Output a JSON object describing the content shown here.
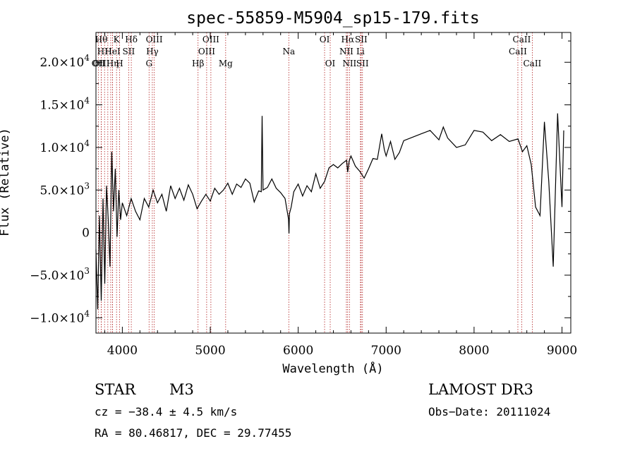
{
  "chart_data": {
    "type": "line",
    "title": "spec-55859-M5904_sp15-179.fits",
    "xlabel": "Wavelength (Å)",
    "ylabel": "Flux (Relative)",
    "xlim": [
      3700,
      9100
    ],
    "ylim": [
      -11800,
      23500
    ],
    "x_ticks": [
      4000,
      5000,
      6000,
      7000,
      8000,
      9000
    ],
    "y_ticks": [
      {
        "value": -10000,
        "mant": "−1.0×10",
        "exp": "4"
      },
      {
        "value": -5000,
        "mant": "−5.0×10",
        "exp": "3"
      },
      {
        "value": 0,
        "mant": "0",
        "exp": ""
      },
      {
        "value": 5000,
        "mant": "5.0×10",
        "exp": "3"
      },
      {
        "value": 10000,
        "mant": "1.0×10",
        "exp": "4"
      },
      {
        "value": 15000,
        "mant": "1.5×10",
        "exp": "4"
      },
      {
        "value": 20000,
        "mant": "2.0×10",
        "exp": "4"
      }
    ],
    "series": [
      {
        "x": [
          3700,
          3720,
          3740,
          3760,
          3780,
          3800,
          3820,
          3840,
          3860,
          3880,
          3900,
          3920,
          3940,
          3960,
          3980,
          4000,
          4050,
          4100,
          4150,
          4200,
          4250,
          4300,
          4350,
          4400,
          4450,
          4500,
          4550,
          4600,
          4650,
          4700,
          4750,
          4800,
          4850,
          4900,
          4950,
          5000,
          5050,
          5100,
          5150,
          5200,
          5250,
          5300,
          5350,
          5400,
          5450,
          5500,
          5550,
          5580,
          5590,
          5600,
          5650,
          5700,
          5750,
          5800,
          5850,
          5890,
          5895,
          5900,
          5920,
          5950,
          6000,
          6050,
          6100,
          6150,
          6200,
          6250,
          6300,
          6350,
          6400,
          6450,
          6500,
          6550,
          6563,
          6580,
          6600,
          6650,
          6700,
          6750,
          6800,
          6850,
          6900,
          6950,
          6980,
          7000,
          7050,
          7100,
          7150,
          7200,
          7300,
          7400,
          7500,
          7600,
          7650,
          7700,
          7800,
          7900,
          8000,
          8100,
          8200,
          8300,
          8400,
          8500,
          8550,
          8600,
          8650,
          8700,
          8750,
          8800,
          8850,
          8900,
          8950,
          9000,
          9020
        ],
        "y": [
          -2000,
          -9000,
          2000,
          -8000,
          4000,
          -6000,
          5500,
          1500,
          -4000,
          9500,
          2500,
          7500,
          -500,
          5000,
          1500,
          3500,
          2000,
          4000,
          2500,
          1500,
          4000,
          3000,
          5000,
          3500,
          4500,
          2500,
          5500,
          4000,
          5200,
          3800,
          5600,
          4500,
          2800,
          3700,
          4500,
          3700,
          5200,
          4500,
          5000,
          5800,
          4500,
          5700,
          5300,
          6300,
          5800,
          3600,
          4900,
          4800,
          13700,
          5000,
          5300,
          6300,
          5200,
          4700,
          4000,
          1600,
          -100,
          2200,
          3000,
          4800,
          5700,
          4300,
          5500,
          4800,
          6900,
          5200,
          6000,
          7600,
          8000,
          7600,
          8100,
          8500,
          7100,
          8400,
          9000,
          7800,
          7200,
          6400,
          7500,
          8700,
          8600,
          11600,
          9700,
          9000,
          10700,
          8600,
          9400,
          10800,
          11200,
          11600,
          12000,
          10900,
          12400,
          11100,
          10000,
          10300,
          12000,
          11800,
          10800,
          11500,
          10700,
          11000,
          9500,
          10200,
          8000,
          3000,
          2000,
          13000,
          6000,
          -4000,
          14000,
          3000,
          12000
        ]
      }
    ],
    "grid": false,
    "legend": "none",
    "lines": [
      {
        "w": 3727,
        "label": "OII",
        "row": 2
      },
      {
        "w": 3760,
        "label": "Hθ",
        "row": 0
      },
      {
        "w": 3760,
        "label": "OIII",
        "row": 2
      },
      {
        "w": 3798,
        "label": "HH",
        "row": 1
      },
      {
        "w": 3835,
        "label": "",
        "row": -1
      },
      {
        "w": 3868,
        "label": "",
        "row": -1
      },
      {
        "w": 3889,
        "label": "HeI",
        "row": 1
      },
      {
        "w": 3889,
        "label": "Hη",
        "row": 2
      },
      {
        "w": 3934,
        "label": "K",
        "row": 0
      },
      {
        "w": 3969,
        "label": "H",
        "row": 2
      },
      {
        "w": 4072,
        "label": "SII",
        "row": 1
      },
      {
        "w": 4102,
        "label": "Hδ",
        "row": 0
      },
      {
        "w": 4304,
        "label": "G",
        "row": 2
      },
      {
        "w": 4341,
        "label": "Hγ",
        "row": 1
      },
      {
        "w": 4363,
        "label": "OIII",
        "row": 0
      },
      {
        "w": 4861,
        "label": "Hβ",
        "row": 2
      },
      {
        "w": 4959,
        "label": "OIII",
        "row": 1
      },
      {
        "w": 5007,
        "label": "OIII",
        "row": 0
      },
      {
        "w": 5175,
        "label": "Mg",
        "row": 2
      },
      {
        "w": 5893,
        "label": "Na",
        "row": 1
      },
      {
        "w": 6300,
        "label": "OI",
        "row": 0
      },
      {
        "w": 6364,
        "label": "OI",
        "row": 2
      },
      {
        "w": 6548,
        "label": "NII",
        "row": 1
      },
      {
        "w": 6563,
        "label": "Hα",
        "row": 0
      },
      {
        "w": 6583,
        "label": "NII",
        "row": 2
      },
      {
        "w": 6708,
        "label": "Li",
        "row": 1
      },
      {
        "w": 6716,
        "label": "SII",
        "row": 0
      },
      {
        "w": 6731,
        "label": "SII",
        "row": 2
      },
      {
        "w": 8498,
        "label": "CaII",
        "row": 1
      },
      {
        "w": 8542,
        "label": "CaII",
        "row": 0
      },
      {
        "w": 8662,
        "label": "CaII",
        "row": 2
      }
    ]
  },
  "footer": {
    "class": "STAR",
    "subclass": "M3",
    "survey": "LAMOST DR3",
    "cz": "cz = −38.4 ± 4.5 km/s",
    "obsdate": "Obs−Date: 20111024",
    "radec": "RA =  80.46817, DEC =  29.77455"
  }
}
